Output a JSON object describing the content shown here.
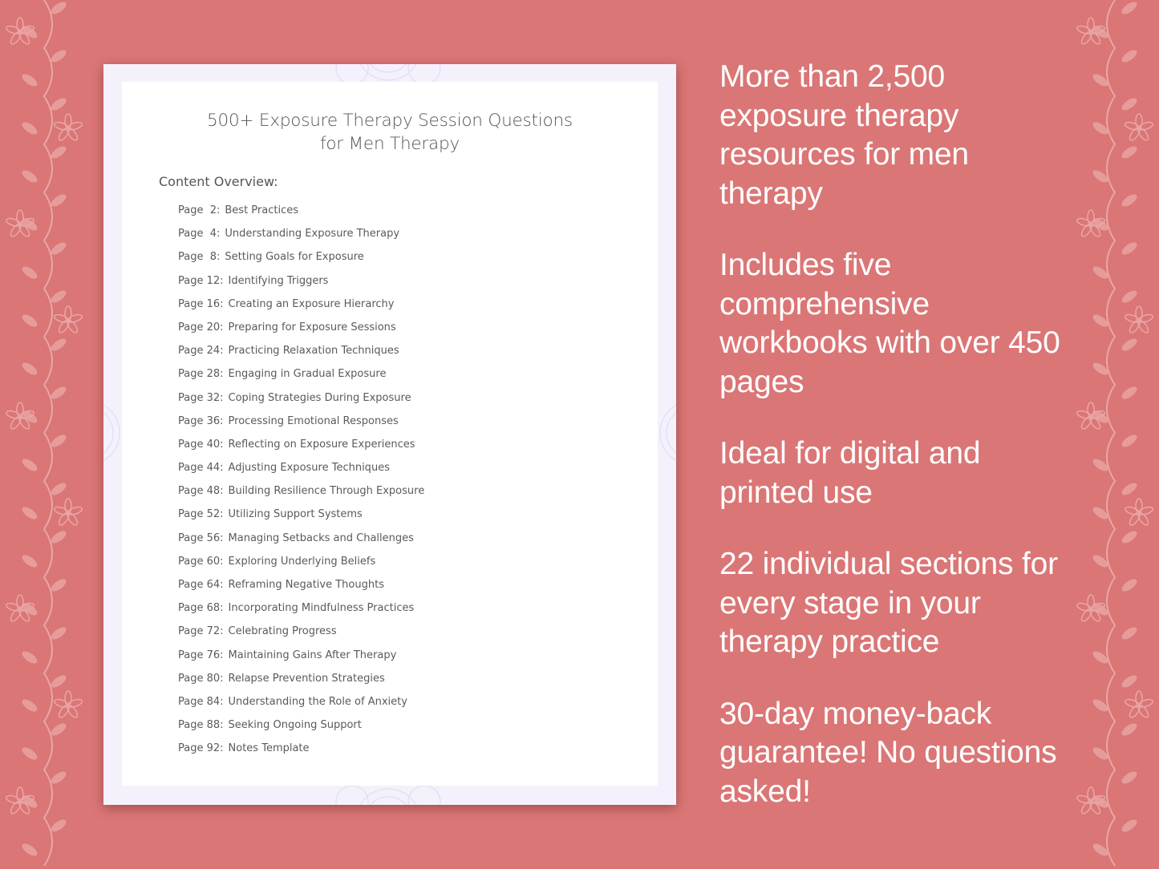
{
  "colors": {
    "background": "#db7676",
    "page_border": "#f4f1fc",
    "sheet": "#ffffff",
    "text_dark": "#555555",
    "feature_text": "#ffffff",
    "vine": "#eaa6a6"
  },
  "document": {
    "title": "500+ Exposure Therapy Session Questions for Men Therapy",
    "overview_heading": "Content Overview:",
    "toc": [
      {
        "page": "Page  2:",
        "title": "Best Practices"
      },
      {
        "page": "Page  4:",
        "title": "Understanding Exposure Therapy"
      },
      {
        "page": "Page  8:",
        "title": "Setting Goals for Exposure"
      },
      {
        "page": "Page 12:",
        "title": "Identifying Triggers"
      },
      {
        "page": "Page 16:",
        "title": "Creating an Exposure Hierarchy"
      },
      {
        "page": "Page 20:",
        "title": "Preparing for Exposure Sessions"
      },
      {
        "page": "Page 24:",
        "title": "Practicing Relaxation Techniques"
      },
      {
        "page": "Page 28:",
        "title": "Engaging in Gradual Exposure"
      },
      {
        "page": "Page 32:",
        "title": "Coping Strategies During Exposure"
      },
      {
        "page": "Page 36:",
        "title": "Processing Emotional Responses"
      },
      {
        "page": "Page 40:",
        "title": "Reflecting on Exposure Experiences"
      },
      {
        "page": "Page 44:",
        "title": "Adjusting Exposure Techniques"
      },
      {
        "page": "Page 48:",
        "title": "Building Resilience Through Exposure"
      },
      {
        "page": "Page 52:",
        "title": "Utilizing Support Systems"
      },
      {
        "page": "Page 56:",
        "title": "Managing Setbacks and Challenges"
      },
      {
        "page": "Page 60:",
        "title": "Exploring Underlying Beliefs"
      },
      {
        "page": "Page 64:",
        "title": "Reframing Negative Thoughts"
      },
      {
        "page": "Page 68:",
        "title": "Incorporating Mindfulness Practices"
      },
      {
        "page": "Page 72:",
        "title": "Celebrating Progress"
      },
      {
        "page": "Page 76:",
        "title": "Maintaining Gains After Therapy"
      },
      {
        "page": "Page 80:",
        "title": "Relapse Prevention Strategies"
      },
      {
        "page": "Page 84:",
        "title": "Understanding the Role of Anxiety"
      },
      {
        "page": "Page 88:",
        "title": "Seeking Ongoing Support"
      },
      {
        "page": "Page 92:",
        "title": "Notes Template"
      }
    ]
  },
  "features": [
    "More than 2,500 exposure therapy resources for men therapy",
    "Includes five comprehensive workbooks with over 450 pages",
    "Ideal for digital and printed use",
    "22 individual sections for every stage in your therapy practice",
    "30-day money-back guarantee! No questions asked!"
  ]
}
